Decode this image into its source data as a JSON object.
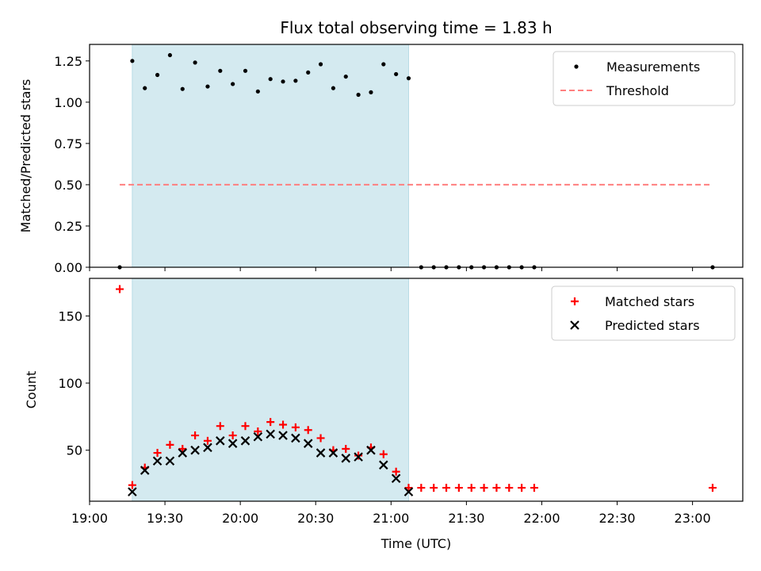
{
  "chart_data": {
    "title": "Flux total observing time = 1.83 h",
    "xlabel": "Time (UTC)",
    "x_tick_labels": [
      "19:00",
      "19:30",
      "20:00",
      "20:30",
      "21:00",
      "21:30",
      "22:00",
      "22:30",
      "23:00"
    ],
    "x_tick_minutes": [
      0,
      30,
      60,
      90,
      120,
      150,
      180,
      210,
      240
    ],
    "xlim_minutes": [
      0,
      260
    ],
    "observing_window_minutes": [
      17,
      127
    ],
    "observing_window_color": "#d4eaf0",
    "panels": [
      {
        "type": "scatter",
        "ylabel": "Matched/Predicted stars",
        "ylim": [
          0,
          1.35
        ],
        "y_ticks": [
          0.0,
          0.25,
          0.5,
          0.75,
          1.0,
          1.25
        ],
        "y_tick_labels": [
          "0.00",
          "0.25",
          "0.50",
          "0.75",
          "1.00",
          "1.25"
        ],
        "legend": {
          "placement": "top-right"
        },
        "series": [
          {
            "name": "Measurements",
            "marker": "dot",
            "color": "#000000",
            "points": [
              [
                12,
                0.0
              ],
              [
                17,
                1.25
              ],
              [
                22,
                1.085
              ],
              [
                27,
                1.165
              ],
              [
                32,
                1.285
              ],
              [
                37,
                1.08
              ],
              [
                42,
                1.24
              ],
              [
                47,
                1.095
              ],
              [
                52,
                1.19
              ],
              [
                57,
                1.11
              ],
              [
                62,
                1.19
              ],
              [
                67,
                1.065
              ],
              [
                72,
                1.14
              ],
              [
                77,
                1.125
              ],
              [
                82,
                1.13
              ],
              [
                87,
                1.18
              ],
              [
                92,
                1.23
              ],
              [
                97,
                1.085
              ],
              [
                102,
                1.155
              ],
              [
                107,
                1.045
              ],
              [
                112,
                1.06
              ],
              [
                117,
                1.23
              ],
              [
                122,
                1.17
              ],
              [
                127,
                1.145
              ],
              [
                132,
                0.0
              ],
              [
                137,
                0.0
              ],
              [
                142,
                0.0
              ],
              [
                147,
                0.0
              ],
              [
                152,
                0.0
              ],
              [
                157,
                0.0
              ],
              [
                162,
                0.0
              ],
              [
                167,
                0.0
              ],
              [
                172,
                0.0
              ],
              [
                177,
                0.0
              ],
              [
                248,
                0.0
              ]
            ]
          },
          {
            "name": "Threshold",
            "marker": "dashed-line",
            "color": "#ff7f7f",
            "points": [
              [
                12,
                0.5
              ],
              [
                248,
                0.5
              ]
            ]
          }
        ]
      },
      {
        "type": "scatter",
        "ylabel": "Count",
        "ylim": [
          12,
          178
        ],
        "y_ticks": [
          50,
          100,
          150
        ],
        "y_tick_labels": [
          "50",
          "100",
          "150"
        ],
        "legend": {
          "placement": "top-right"
        },
        "series": [
          {
            "name": "Matched stars",
            "marker": "plus",
            "color": "#ff0000",
            "points": [
              [
                12,
                170
              ],
              [
                17,
                24
              ],
              [
                22,
                37
              ],
              [
                27,
                48
              ],
              [
                32,
                54
              ],
              [
                37,
                51
              ],
              [
                42,
                61
              ],
              [
                47,
                57
              ],
              [
                52,
                68
              ],
              [
                57,
                61
              ],
              [
                62,
                68
              ],
              [
                67,
                64
              ],
              [
                72,
                71
              ],
              [
                77,
                69
              ],
              [
                82,
                67
              ],
              [
                87,
                65
              ],
              [
                92,
                59
              ],
              [
                97,
                50
              ],
              [
                102,
                51
              ],
              [
                107,
                46
              ],
              [
                112,
                52
              ],
              [
                117,
                47
              ],
              [
                122,
                34
              ],
              [
                127,
                22
              ],
              [
                132,
                22
              ],
              [
                137,
                22
              ],
              [
                142,
                22
              ],
              [
                147,
                22
              ],
              [
                152,
                22
              ],
              [
                157,
                22
              ],
              [
                162,
                22
              ],
              [
                167,
                22
              ],
              [
                172,
                22
              ],
              [
                177,
                22
              ],
              [
                248,
                22
              ]
            ]
          },
          {
            "name": "Predicted stars",
            "marker": "x",
            "color": "#000000",
            "points": [
              [
                17,
                19
              ],
              [
                22,
                35
              ],
              [
                27,
                42
              ],
              [
                32,
                42
              ],
              [
                37,
                48
              ],
              [
                42,
                50
              ],
              [
                47,
                52
              ],
              [
                52,
                57
              ],
              [
                57,
                55
              ],
              [
                62,
                57
              ],
              [
                67,
                60
              ],
              [
                72,
                62
              ],
              [
                77,
                61
              ],
              [
                82,
                59
              ],
              [
                87,
                55
              ],
              [
                92,
                48
              ],
              [
                97,
                48
              ],
              [
                102,
                44
              ],
              [
                107,
                45
              ],
              [
                112,
                50
              ],
              [
                117,
                39
              ],
              [
                122,
                29
              ],
              [
                127,
                19
              ]
            ]
          }
        ]
      }
    ]
  }
}
